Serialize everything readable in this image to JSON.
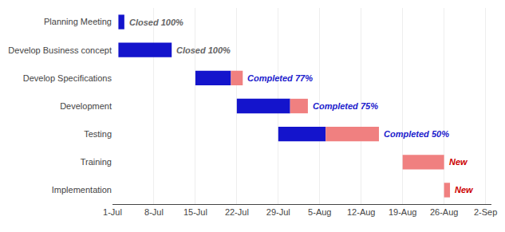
{
  "chart_data": {
    "type": "bar",
    "orientation": "horizontal",
    "stacked": true,
    "categories": [
      "Planning Meeting",
      "Develop Business concept",
      "Develop Specifications",
      "Development",
      "Testing",
      "Training",
      "Implementation"
    ],
    "starts": [
      1,
      1,
      14,
      21,
      28,
      49,
      56
    ],
    "series": [
      {
        "color": "#1414CC",
        "values": [
          1,
          9,
          6,
          9,
          8,
          0,
          0
        ]
      },
      {
        "color": "#F08080",
        "values": [
          0,
          0,
          2,
          3,
          9,
          7,
          1
        ]
      }
    ],
    "annotations": [
      {
        "text": "Closed 100%",
        "color": "#666666"
      },
      {
        "text": "Closed 100%",
        "color": "#666666"
      },
      {
        "text": "Completed 77%",
        "color": "#2020CC"
      },
      {
        "text": "Completed 75%",
        "color": "#2020CC"
      },
      {
        "text": "Completed 50%",
        "color": "#2020CC"
      },
      {
        "text": "New",
        "color": "#CC0000"
      },
      {
        "text": "New",
        "color": "#CC0000"
      }
    ],
    "xlim": [
      0,
      64
    ],
    "xticks": [
      {
        "value": 0,
        "label": "1-Jul"
      },
      {
        "value": 7,
        "label": "8-Jul"
      },
      {
        "value": 14,
        "label": "15-Jul"
      },
      {
        "value": 21,
        "label": "22-Jul"
      },
      {
        "value": 28,
        "label": "29-Jul"
      },
      {
        "value": 35,
        "label": "5-Aug"
      },
      {
        "value": 42,
        "label": "12-Aug"
      },
      {
        "value": 49,
        "label": "19-Aug"
      },
      {
        "value": 56,
        "label": "26-Aug"
      },
      {
        "value": 63,
        "label": "2-Sep"
      }
    ],
    "grid": true
  }
}
